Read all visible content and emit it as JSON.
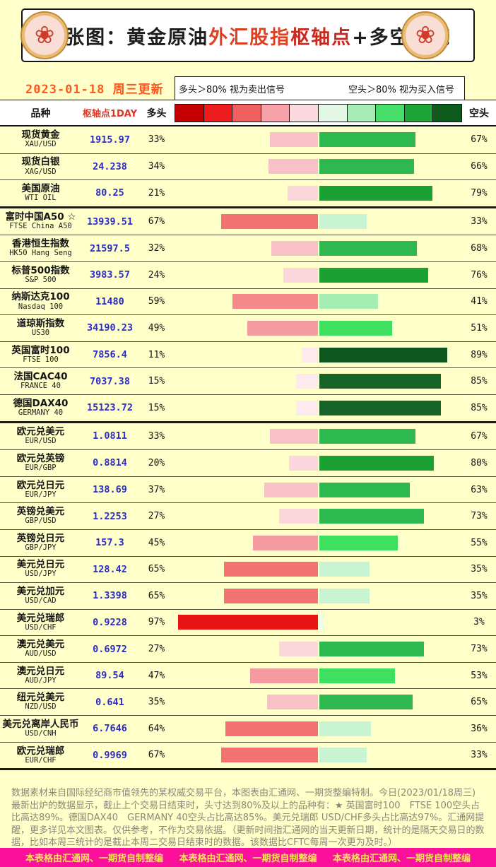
{
  "palette": {
    "page_bg": "#ffffc9",
    "accent_date": "#ff571e",
    "header_red": "#e03420",
    "pivot_value": "#2b2bd0",
    "row_line": "#56513b",
    "footnote_color": "#8d8779",
    "footer_bg": "#fb109c",
    "footer_text": "#f0e84c"
  },
  "header": {
    "emblem_glyph": "❀",
    "title_segments": [
      {
        "text": "一张图：黄金原油",
        "color": "#1d1d1d"
      },
      {
        "text": "外汇股指",
        "color": "#e04020"
      },
      {
        "text": "枢轴点",
        "color": "#c8281e"
      },
      {
        "text": "+多空一览",
        "color": "#1d1d1d"
      }
    ]
  },
  "date_line": "2023-01-18 周三更新",
  "legend": {
    "long_signal": "多头＞80% 视为卖出信号",
    "short_signal": "空头＞80% 视为买入信号"
  },
  "columns": {
    "variety": "品种",
    "pivot": "枢轴点1DAY",
    "long": "多头",
    "short": "空头"
  },
  "scale": {
    "colors": [
      "#c40000",
      "#ea1c1c",
      "#f26060",
      "#f7a2a8",
      "#fbd9de",
      "#e3f7e6",
      "#a8ecb5",
      "#46dd68",
      "#1ea339",
      "#0d5c1e"
    ]
  },
  "chart_data": {
    "type": "bar",
    "orientation": "horizontal-diverging",
    "title": "一张图：黄金原油外汇股指枢轴点+多空一览",
    "value_unit": "percent",
    "axis_range_each_side": [
      0,
      100
    ],
    "groups": [
      [
        {
          "name": "现货黄金",
          "code": "XAU/USD",
          "pivot": "1915.97",
          "long_pct": 33,
          "short_pct": 67,
          "long_color": "#f8c0c7",
          "short_color": "#2eb850"
        },
        {
          "name": "现货白银",
          "code": "XAG/USD",
          "pivot": "24.238",
          "long_pct": 34,
          "short_pct": 66,
          "long_color": "#f8c0c7",
          "short_color": "#2eb850"
        },
        {
          "name": "美国原油",
          "code": "WTI OIL",
          "pivot": "80.25",
          "long_pct": 21,
          "short_pct": 79,
          "long_color": "#fbd6db",
          "short_color": "#1ba133"
        }
      ],
      [
        {
          "name": "富时中国A50 ☆",
          "code": "FTSE China A50",
          "pivot": "13939.51",
          "long_pct": 67,
          "short_pct": 33,
          "long_color": "#f37272",
          "short_color": "#c9f4d3"
        },
        {
          "name": "香港恒生指数",
          "code": "HK50 Hang Seng",
          "pivot": "21597.5",
          "long_pct": 32,
          "short_pct": 68,
          "long_color": "#f8c0c7",
          "short_color": "#2eb850"
        },
        {
          "name": "标普500指数",
          "code": "S&P 500",
          "pivot": "3983.57",
          "long_pct": 24,
          "short_pct": 76,
          "long_color": "#fbd6db",
          "short_color": "#1ba133"
        },
        {
          "name": "纳斯达克100",
          "code": "Nasdaq 100",
          "pivot": "11480",
          "long_pct": 59,
          "short_pct": 41,
          "long_color": "#f58989",
          "short_color": "#a6edb4"
        },
        {
          "name": "道琼斯指数",
          "code": "US30",
          "pivot": "34190.23",
          "long_pct": 49,
          "short_pct": 51,
          "long_color": "#f69aa1",
          "short_color": "#3fe05f"
        },
        {
          "name": "英国富时100",
          "code": "FTSE 100",
          "pivot": "7856.4",
          "long_pct": 11,
          "short_pct": 89,
          "long_color": "#fdeaee",
          "short_color": "#0d561d"
        },
        {
          "name": "法国CAC40",
          "code": "FRANCE 40",
          "pivot": "7037.38",
          "long_pct": 15,
          "short_pct": 85,
          "long_color": "#fdeaee",
          "short_color": "#156326"
        },
        {
          "name": "德国DAX40",
          "code": "GERMANY 40",
          "pivot": "15123.72",
          "long_pct": 15,
          "short_pct": 85,
          "long_color": "#fdeaee",
          "short_color": "#156326"
        }
      ],
      [
        {
          "name": "欧元兑美元",
          "code": "EUR/USD",
          "pivot": "1.0811",
          "long_pct": 33,
          "short_pct": 67,
          "long_color": "#f8c0c7",
          "short_color": "#2eb850"
        },
        {
          "name": "欧元兑英镑",
          "code": "EUR/GBP",
          "pivot": "0.8814",
          "long_pct": 20,
          "short_pct": 80,
          "long_color": "#fbd6db",
          "short_color": "#1ba133"
        },
        {
          "name": "欧元兑日元",
          "code": "EUR/JPY",
          "pivot": "138.69",
          "long_pct": 37,
          "short_pct": 63,
          "long_color": "#f8c0c7",
          "short_color": "#2eb850"
        },
        {
          "name": "英镑兑美元",
          "code": "GBP/USD",
          "pivot": "1.2253",
          "long_pct": 27,
          "short_pct": 73,
          "long_color": "#fbd6db",
          "short_color": "#2eb850"
        },
        {
          "name": "英镑兑日元",
          "code": "GBP/JPY",
          "pivot": "157.3",
          "long_pct": 45,
          "short_pct": 55,
          "long_color": "#f69aa1",
          "short_color": "#3fe05f"
        },
        {
          "name": "美元兑日元",
          "code": "USD/JPY",
          "pivot": "128.42",
          "long_pct": 65,
          "short_pct": 35,
          "long_color": "#f37272",
          "short_color": "#c9f4d3"
        },
        {
          "name": "美元兑加元",
          "code": "USD/CAD",
          "pivot": "1.3398",
          "long_pct": 65,
          "short_pct": 35,
          "long_color": "#f37272",
          "short_color": "#c9f4d3"
        },
        {
          "name": "美元兑瑞郎",
          "code": "USD/CHF",
          "pivot": "0.9228",
          "long_pct": 97,
          "short_pct": 3,
          "long_color": "#e81414",
          "short_color": "#eafdee"
        },
        {
          "name": "澳元兑美元",
          "code": "AUD/USD",
          "pivot": "0.6972",
          "long_pct": 27,
          "short_pct": 73,
          "long_color": "#fbd6db",
          "short_color": "#2eb850"
        },
        {
          "name": "澳元兑日元",
          "code": "AUD/JPY",
          "pivot": "89.54",
          "long_pct": 47,
          "short_pct": 53,
          "long_color": "#f69aa1",
          "short_color": "#3fe05f"
        },
        {
          "name": "纽元兑美元",
          "code": "NZD/USD",
          "pivot": "0.641",
          "long_pct": 35,
          "short_pct": 65,
          "long_color": "#f8c0c7",
          "short_color": "#2eb850"
        },
        {
          "name": "美元兑离岸人民币",
          "code": "USD/CNH",
          "pivot": "6.7646",
          "long_pct": 64,
          "short_pct": 36,
          "long_color": "#f37272",
          "short_color": "#c9f4d3"
        },
        {
          "name": "欧元兑瑞郎",
          "code": "EUR/CHF",
          "pivot": "0.9969",
          "long_pct": 67,
          "short_pct": 33,
          "long_color": "#f37272",
          "short_color": "#c9f4d3"
        }
      ]
    ]
  },
  "footnote": "数据素材来自国际经纪商市值领先的某权威交易平台，本图表由汇通网、一期货整编特制。今日(2023/01/18周三)最新出炉的数据显示，截止上个交易日结束时，头寸达到80%及以上的品种有：★ 英国富时100　FTSE 100空头占比高达89%。德国DAX40　GERMANY 40空头占比高达85%。美元兑瑞郎 USD/CHF多头占比高达97%。汇通网提醒，更多详见本文图表。仅供参考，不作为交易依据。（更新时间指汇通网的当天更新日期，统计的是隔天交易日的数据，比如本周三统计的是截止本周二交易日结束时的数据。该数据比CFTC每周一次更为及时。）",
  "footer_bar": {
    "text": "本表格由汇通网、一期货自制整编",
    "repeat": 3
  }
}
